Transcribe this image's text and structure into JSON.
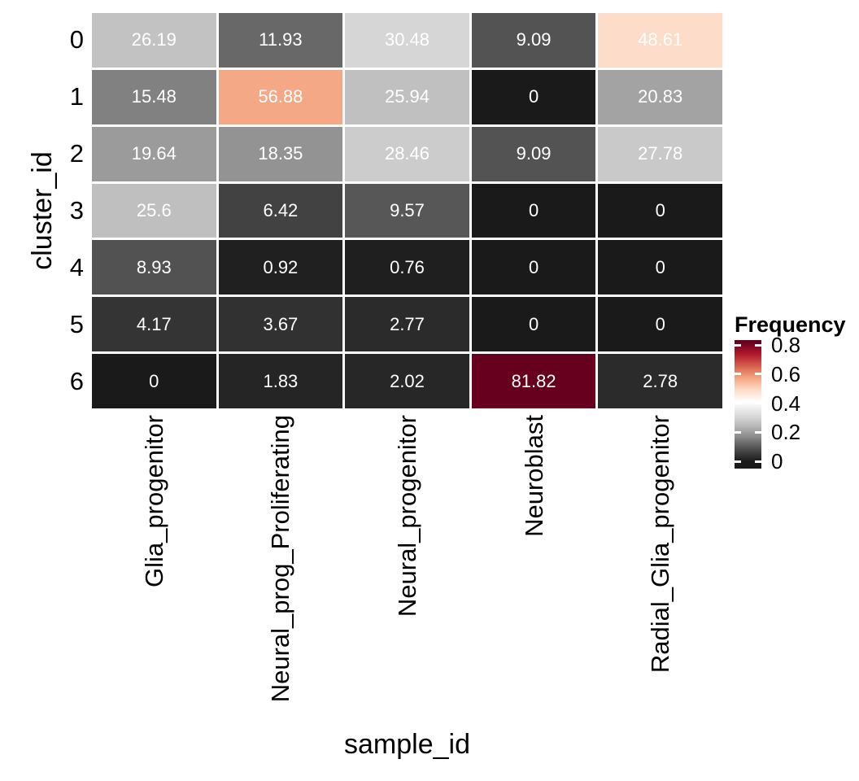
{
  "chart_data": {
    "type": "heatmap",
    "title": "",
    "xlabel": "sample_id",
    "ylabel": "cluster_id",
    "columns": [
      "Glia_progenitor",
      "Neural_prog_Proliferating",
      "Neural_progenitor",
      "Neuroblast",
      "Radial_Glia_progenitor"
    ],
    "rows": [
      "0",
      "1",
      "2",
      "3",
      "4",
      "5",
      "6"
    ],
    "values": [
      [
        "26.19",
        "11.93",
        "30.48",
        "9.09",
        "48.61"
      ],
      [
        "15.48",
        "56.88",
        "25.94",
        "0",
        "20.83"
      ],
      [
        "19.64",
        "18.35",
        "28.46",
        "9.09",
        "27.78"
      ],
      [
        "25.6",
        "6.42",
        "9.57",
        "0",
        "0"
      ],
      [
        "8.93",
        "0.92",
        "0.76",
        "0",
        "0"
      ],
      [
        "4.17",
        "3.67",
        "2.77",
        "0",
        "0"
      ],
      [
        "0",
        "1.83",
        "2.02",
        "81.82",
        "2.78"
      ]
    ],
    "cell_value_unit": "percent of cluster frequency",
    "cell_text_color": "#ffffff",
    "grid_gap_color": "#ffffff",
    "legend": {
      "title": "Frequency",
      "position": "right",
      "tick_labels": [
        "0.8",
        "0.6",
        "0.4",
        "0.2",
        "0"
      ],
      "tick_values": [
        0.8,
        0.6,
        0.4,
        0.2,
        0
      ],
      "domain": [
        0,
        0.8182
      ],
      "palette_low_to_high": [
        "#1a1a1a",
        "#4d4d4d",
        "#878787",
        "#bababa",
        "#e0e0e0",
        "#ffffff",
        "#fddbc7",
        "#f4a582",
        "#d6604d",
        "#b2182b",
        "#67001f"
      ],
      "tick_mark_color": "#ffffff"
    },
    "grid_on": false
  }
}
